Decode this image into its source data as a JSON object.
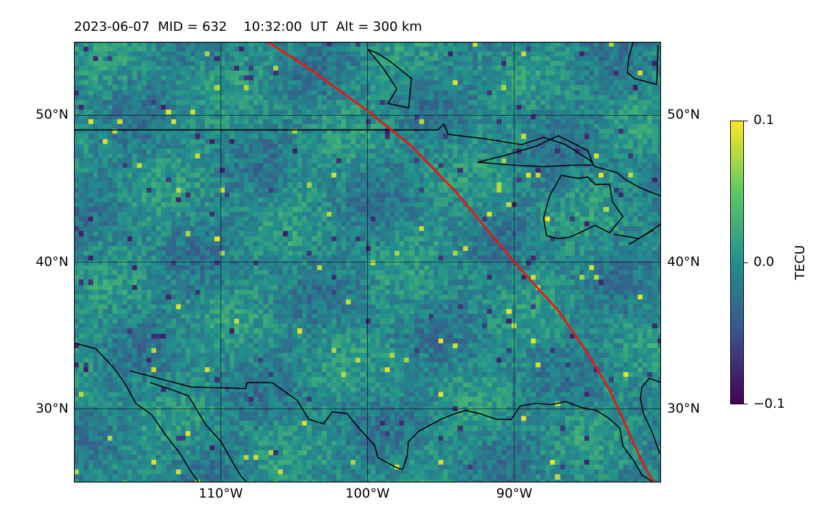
{
  "title": "2023-06-07  MID = 632    10:32:00  UT  Alt = 300 km",
  "map": {
    "lon_range": [
      -120,
      -80
    ],
    "lat_range": [
      25,
      55
    ],
    "lat_ticks": [
      {
        "value": 50,
        "label": "50°N"
      },
      {
        "value": 40,
        "label": "40°N"
      },
      {
        "value": 30,
        "label": "30°N"
      }
    ],
    "lon_ticks": [
      {
        "value": -110,
        "label": "110°W"
      },
      {
        "value": -100,
        "label": "100°W"
      },
      {
        "value": -90,
        "label": "90°W"
      }
    ],
    "satellite_track": {
      "color": "#e8190f",
      "points": [
        [
          -106.8,
          55
        ],
        [
          -104,
          53.2
        ],
        [
          -100,
          50.3
        ],
        [
          -97,
          47.9
        ],
        [
          -94,
          44.8
        ],
        [
          -91.5,
          41.8
        ],
        [
          -90,
          40
        ],
        [
          -87,
          36.7
        ],
        [
          -85,
          33.8
        ],
        [
          -83.5,
          31.3
        ],
        [
          -82.5,
          29.1
        ],
        [
          -81.2,
          26.2
        ],
        [
          -80.5,
          25
        ]
      ]
    },
    "coastlines": [
      [
        [
          -120,
          49
        ],
        [
          -95.2,
          49
        ],
        [
          -94.8,
          49.4
        ],
        [
          -94.5,
          48.7
        ],
        [
          -92,
          48.4
        ],
        [
          -89.5,
          48
        ],
        [
          -88,
          48.5
        ],
        [
          -86.5,
          48
        ],
        [
          -84.8,
          46.9
        ],
        [
          -84.5,
          46.5
        ],
        [
          -83,
          46.1
        ],
        [
          -82.4,
          45.6
        ],
        [
          -81.5,
          45.1
        ],
        [
          -80.8,
          44.8
        ],
        [
          -80,
          44.5
        ]
      ],
      [
        [
          -92.5,
          46.8
        ],
        [
          -90.5,
          47.3
        ],
        [
          -88.5,
          47.9
        ],
        [
          -87,
          48.6
        ],
        [
          -85,
          47.6
        ],
        [
          -84.6,
          46.6
        ],
        [
          -86,
          46.6
        ],
        [
          -88,
          46.5
        ],
        [
          -90,
          46.6
        ],
        [
          -92.5,
          46.8
        ]
      ],
      [
        [
          -87.8,
          41.8
        ],
        [
          -88,
          43
        ],
        [
          -87.6,
          44.5
        ],
        [
          -86.8,
          45.9
        ],
        [
          -85.6,
          45.7
        ],
        [
          -85,
          45.8
        ],
        [
          -84.5,
          45.3
        ],
        [
          -83.5,
          45.3
        ],
        [
          -83.3,
          44.1
        ],
        [
          -82.6,
          43.1
        ],
        [
          -83.5,
          42
        ],
        [
          -84.5,
          42.5
        ],
        [
          -86.2,
          41.7
        ],
        [
          -87,
          41.6
        ],
        [
          -87.8,
          41.8
        ]
      ],
      [
        [
          -83.2,
          41.9
        ],
        [
          -81.5,
          41.6
        ],
        [
          -80,
          42.6
        ]
      ],
      [
        [
          -82.2,
          41.2
        ],
        [
          -80.5,
          42.2
        ]
      ],
      [
        [
          -100,
          54.5
        ],
        [
          -99,
          53.3
        ],
        [
          -98,
          51.8
        ],
        [
          -98.6,
          50.8
        ],
        [
          -97.2,
          50.5
        ],
        [
          -97,
          52.5
        ],
        [
          -98.5,
          53.7
        ],
        [
          -99.3,
          54.2
        ],
        [
          -100,
          54.5
        ]
      ],
      [
        [
          -120,
          34.5
        ],
        [
          -118.5,
          34.1
        ],
        [
          -117.2,
          32.7
        ],
        [
          -116.5,
          31.7
        ],
        [
          -115.8,
          30.4
        ],
        [
          -114.7,
          29.6
        ],
        [
          -113.8,
          28.3
        ],
        [
          -112.8,
          27
        ],
        [
          -112,
          25.7
        ],
        [
          -111.5,
          25
        ]
      ],
      [
        [
          -114.8,
          31.8
        ],
        [
          -113.3,
          31.3
        ],
        [
          -112.2,
          30.9
        ],
        [
          -111,
          28.9
        ],
        [
          -110,
          27.8
        ],
        [
          -109.2,
          26.4
        ],
        [
          -108.6,
          25.4
        ],
        [
          -108.2,
          25
        ]
      ],
      [
        [
          -116.2,
          32.6
        ],
        [
          -112,
          31.5
        ],
        [
          -108.3,
          31.4
        ],
        [
          -108.2,
          31.8
        ],
        [
          -106.5,
          31.8
        ],
        [
          -104.8,
          30.6
        ],
        [
          -104,
          29.3
        ],
        [
          -103,
          29
        ],
        [
          -102.4,
          29.8
        ],
        [
          -101.4,
          29.7
        ],
        [
          -100.5,
          28.6
        ],
        [
          -99.5,
          27.5
        ],
        [
          -99.3,
          26.7
        ],
        [
          -98,
          26
        ],
        [
          -97.6,
          25.9
        ]
      ],
      [
        [
          -97.6,
          25.9
        ],
        [
          -97.3,
          26.8
        ],
        [
          -97.2,
          27.8
        ],
        [
          -96.5,
          28.5
        ],
        [
          -95,
          29.3
        ],
        [
          -94,
          29.7
        ],
        [
          -93.3,
          29.9
        ],
        [
          -92.4,
          29.7
        ],
        [
          -91.2,
          29.3
        ],
        [
          -90.2,
          29.3
        ],
        [
          -89.6,
          30.2
        ],
        [
          -88.5,
          30.4
        ],
        [
          -87.5,
          30.3
        ],
        [
          -86.5,
          30.5
        ],
        [
          -85.4,
          30.1
        ],
        [
          -84.4,
          29.9
        ],
        [
          -83.6,
          29.4
        ],
        [
          -82.8,
          28.7
        ],
        [
          -82.6,
          27.5
        ],
        [
          -81.8,
          26.4
        ],
        [
          -81.3,
          25.5
        ],
        [
          -80.5,
          25
        ]
      ],
      [
        [
          -80,
          31.8
        ],
        [
          -80.8,
          32.1
        ],
        [
          -81.3,
          31.5
        ],
        [
          -81.4,
          30.7
        ],
        [
          -81.2,
          29.7
        ],
        [
          -80.6,
          28.4
        ],
        [
          -80.1,
          27
        ]
      ],
      [
        [
          -80.2,
          54.8
        ],
        [
          -80.3,
          52.1
        ],
        [
          -81.8,
          52.5
        ],
        [
          -82.3,
          52.9
        ],
        [
          -82.2,
          53.9
        ],
        [
          -81.9,
          55
        ]
      ]
    ]
  },
  "colorbar": {
    "label": "TECU",
    "ticks": [
      {
        "value": 0.1,
        "label": "0.1"
      },
      {
        "value": 0.0,
        "label": "0.0"
      },
      {
        "value": -0.1,
        "label": "−0.1"
      }
    ],
    "range": [
      -0.1,
      0.1
    ],
    "colormap_stops": [
      "#440154",
      "#3b528b",
      "#21908d",
      "#5dc962",
      "#fde725"
    ]
  }
}
